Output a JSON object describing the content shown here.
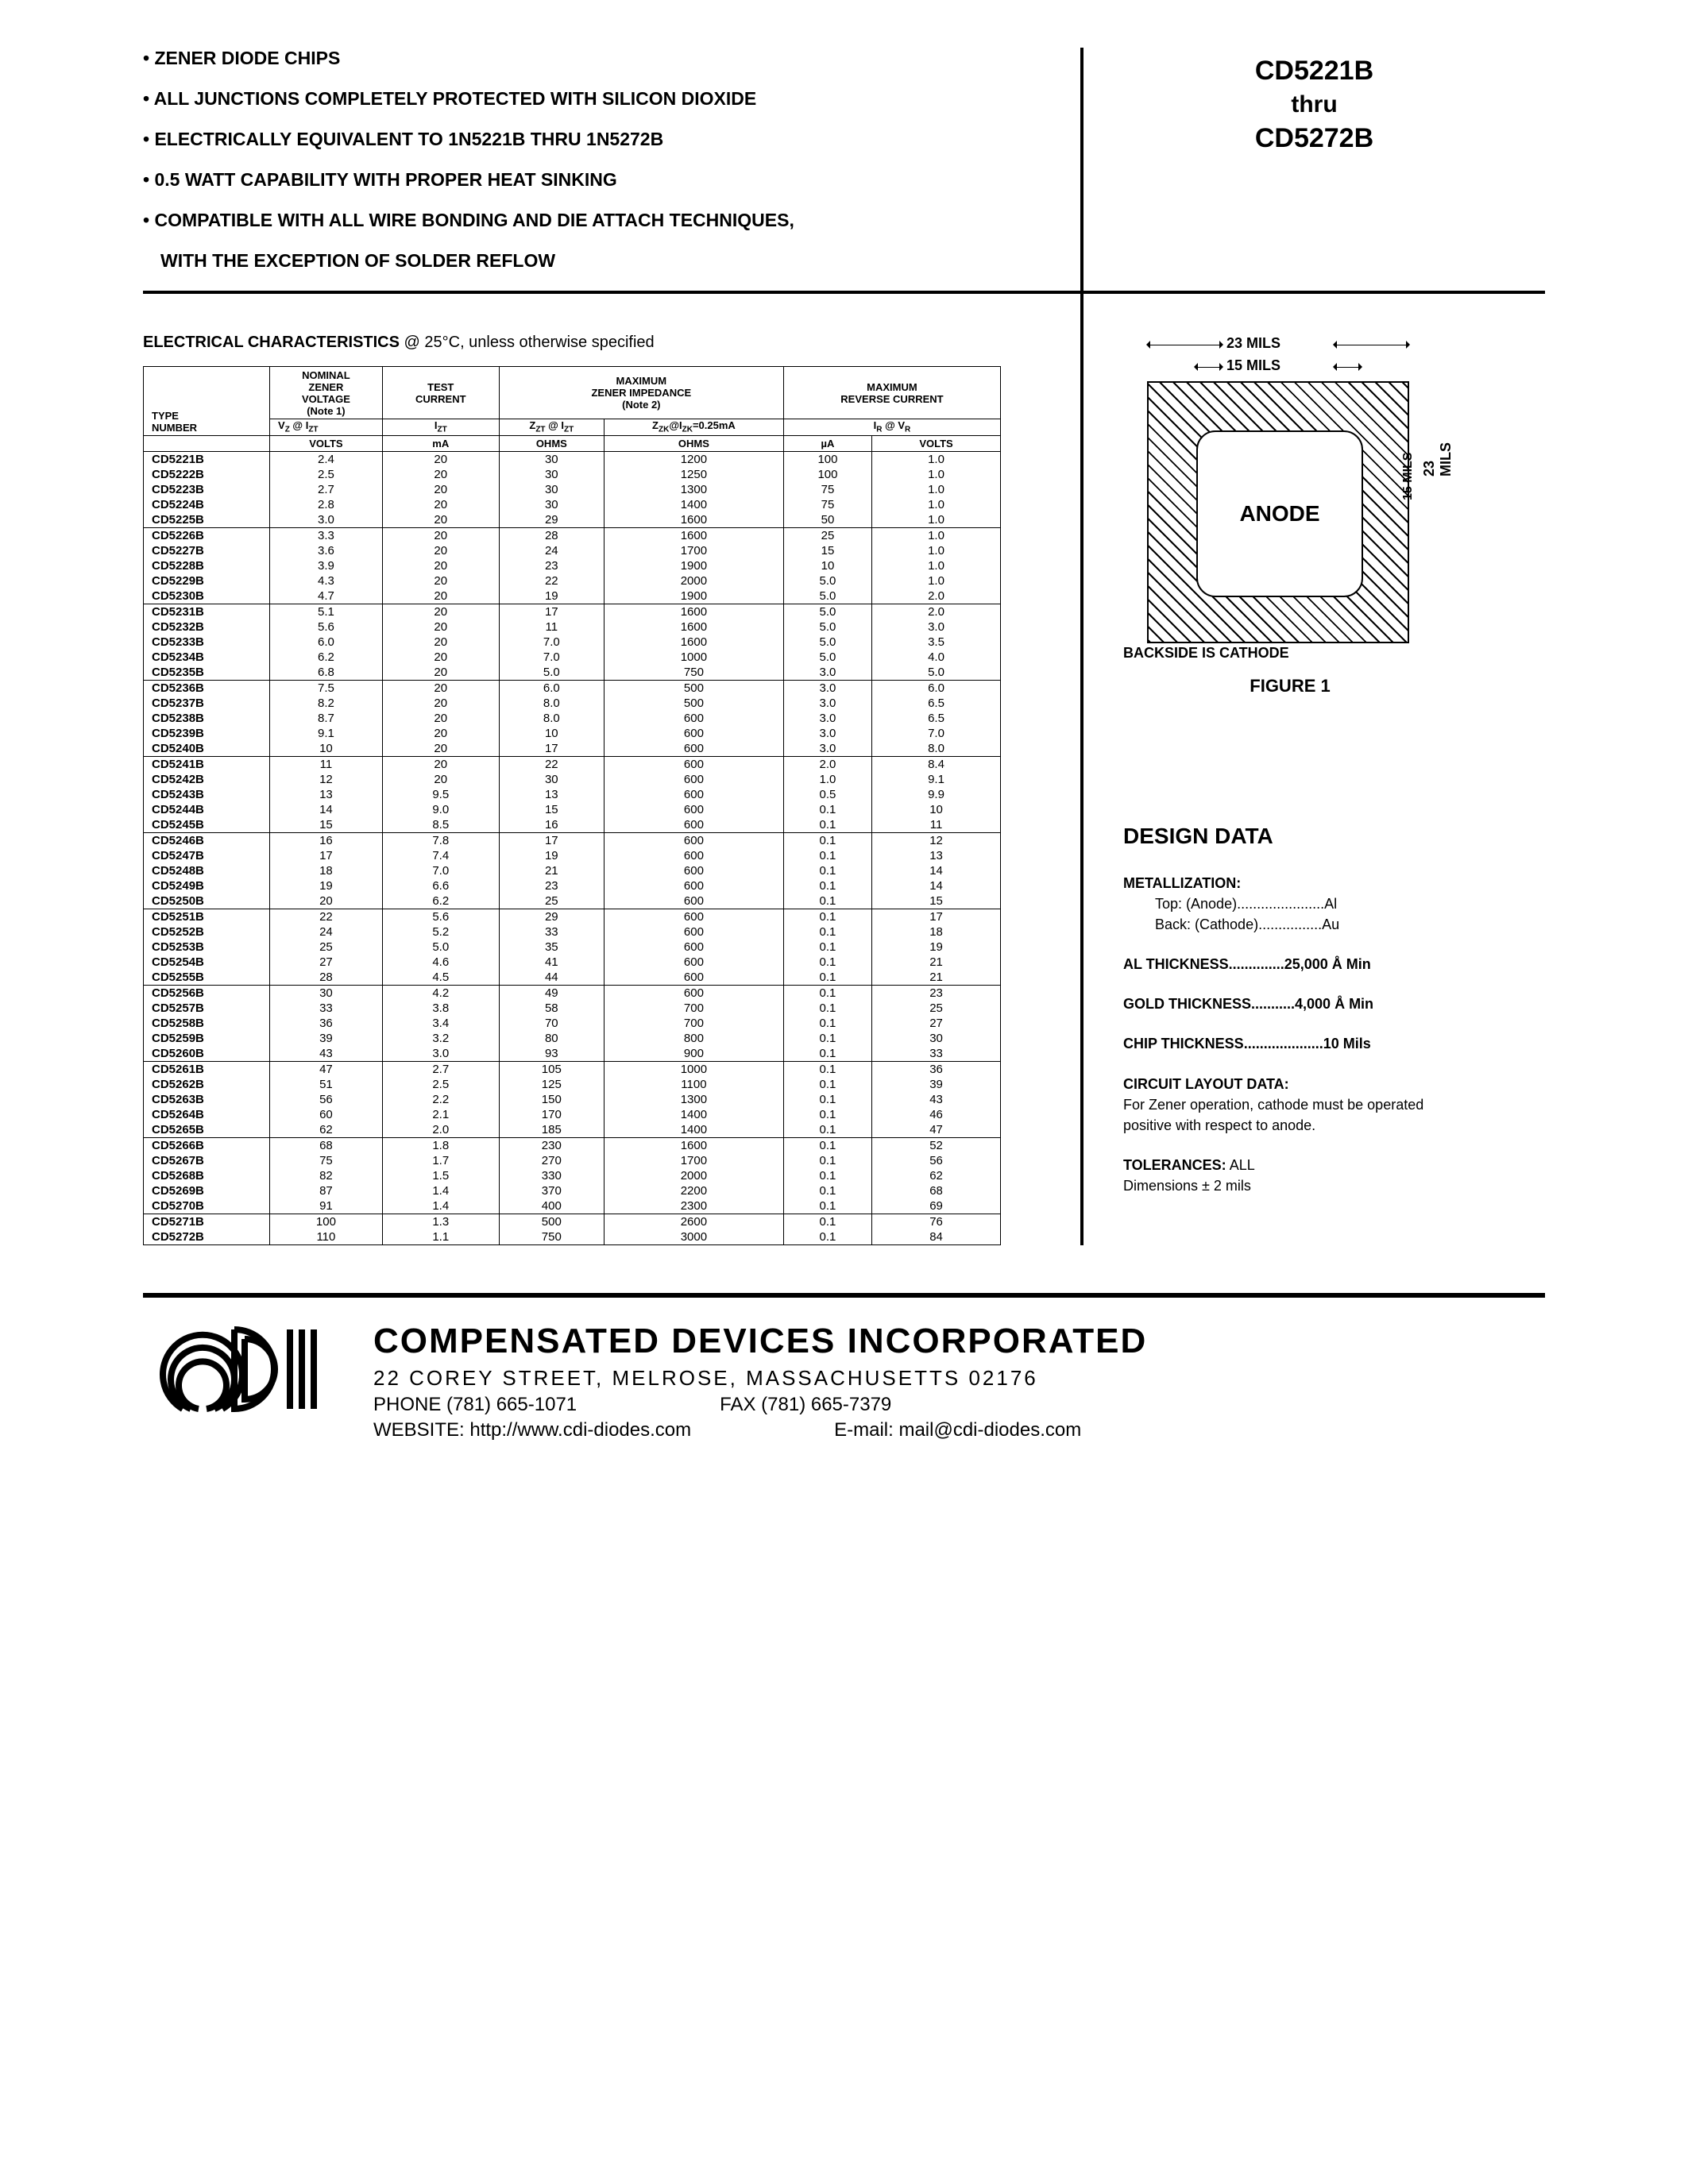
{
  "part_range": {
    "from": "CD5221B",
    "thru_label": "thru",
    "to": "CD5272B"
  },
  "features": [
    "ZENER DIODE CHIPS",
    "ALL JUNCTIONS COMPLETELY PROTECTED WITH SILICON DIOXIDE",
    "ELECTRICALLY EQUIVALENT TO 1N5221B THRU 1N5272B",
    "0.5 WATT CAPABILITY WITH PROPER HEAT SINKING",
    "COMPATIBLE WITH ALL WIRE BONDING AND DIE ATTACH TECHNIQUES,",
    "WITH THE EXCEPTION OF SOLDER REFLOW"
  ],
  "ec_title": "ELECTRICAL CHARACTERISTICS",
  "ec_cond": " @ 25°C, unless otherwise specified",
  "table": {
    "headers": {
      "type": "TYPE\nNUMBER",
      "nominal": "NOMINAL\nZENER\nVOLTAGE\n(Note 1)",
      "test": "TEST\nCURRENT",
      "max_imp": "MAXIMUM\nZENER IMPEDANCE\n(Note 2)",
      "max_rev": "MAXIMUM\nREVERSE CURRENT",
      "sub1": "V_Z @ I_ZT",
      "sub2": "I_ZT",
      "sub3": "Z_ZT @ I_ZT",
      "sub4": "Z_ZK@I_ZK=0.25mA",
      "sub5": "I_R @ V_R",
      "units": [
        "VOLTS",
        "mA",
        "OHMS",
        "OHMS",
        "µA",
        "VOLTS"
      ]
    },
    "groups": [
      [
        [
          "CD5221B",
          "2.4",
          "20",
          "30",
          "1200",
          "100",
          "1.0"
        ],
        [
          "CD5222B",
          "2.5",
          "20",
          "30",
          "1250",
          "100",
          "1.0"
        ],
        [
          "CD5223B",
          "2.7",
          "20",
          "30",
          "1300",
          "75",
          "1.0"
        ],
        [
          "CD5224B",
          "2.8",
          "20",
          "30",
          "1400",
          "75",
          "1.0"
        ],
        [
          "CD5225B",
          "3.0",
          "20",
          "29",
          "1600",
          "50",
          "1.0"
        ]
      ],
      [
        [
          "CD5226B",
          "3.3",
          "20",
          "28",
          "1600",
          "25",
          "1.0"
        ],
        [
          "CD5227B",
          "3.6",
          "20",
          "24",
          "1700",
          "15",
          "1.0"
        ],
        [
          "CD5228B",
          "3.9",
          "20",
          "23",
          "1900",
          "10",
          "1.0"
        ],
        [
          "CD5229B",
          "4.3",
          "20",
          "22",
          "2000",
          "5.0",
          "1.0"
        ],
        [
          "CD5230B",
          "4.7",
          "20",
          "19",
          "1900",
          "5.0",
          "2.0"
        ]
      ],
      [
        [
          "CD5231B",
          "5.1",
          "20",
          "17",
          "1600",
          "5.0",
          "2.0"
        ],
        [
          "CD5232B",
          "5.6",
          "20",
          "11",
          "1600",
          "5.0",
          "3.0"
        ],
        [
          "CD5233B",
          "6.0",
          "20",
          "7.0",
          "1600",
          "5.0",
          "3.5"
        ],
        [
          "CD5234B",
          "6.2",
          "20",
          "7.0",
          "1000",
          "5.0",
          "4.0"
        ],
        [
          "CD5235B",
          "6.8",
          "20",
          "5.0",
          "750",
          "3.0",
          "5.0"
        ]
      ],
      [
        [
          "CD5236B",
          "7.5",
          "20",
          "6.0",
          "500",
          "3.0",
          "6.0"
        ],
        [
          "CD5237B",
          "8.2",
          "20",
          "8.0",
          "500",
          "3.0",
          "6.5"
        ],
        [
          "CD5238B",
          "8.7",
          "20",
          "8.0",
          "600",
          "3.0",
          "6.5"
        ],
        [
          "CD5239B",
          "9.1",
          "20",
          "10",
          "600",
          "3.0",
          "7.0"
        ],
        [
          "CD5240B",
          "10",
          "20",
          "17",
          "600",
          "3.0",
          "8.0"
        ]
      ],
      [
        [
          "CD5241B",
          "11",
          "20",
          "22",
          "600",
          "2.0",
          "8.4"
        ],
        [
          "CD5242B",
          "12",
          "20",
          "30",
          "600",
          "1.0",
          "9.1"
        ],
        [
          "CD5243B",
          "13",
          "9.5",
          "13",
          "600",
          "0.5",
          "9.9"
        ],
        [
          "CD5244B",
          "14",
          "9.0",
          "15",
          "600",
          "0.1",
          "10"
        ],
        [
          "CD5245B",
          "15",
          "8.5",
          "16",
          "600",
          "0.1",
          "11"
        ]
      ],
      [
        [
          "CD5246B",
          "16",
          "7.8",
          "17",
          "600",
          "0.1",
          "12"
        ],
        [
          "CD5247B",
          "17",
          "7.4",
          "19",
          "600",
          "0.1",
          "13"
        ],
        [
          "CD5248B",
          "18",
          "7.0",
          "21",
          "600",
          "0.1",
          "14"
        ],
        [
          "CD5249B",
          "19",
          "6.6",
          "23",
          "600",
          "0.1",
          "14"
        ],
        [
          "CD5250B",
          "20",
          "6.2",
          "25",
          "600",
          "0.1",
          "15"
        ]
      ],
      [
        [
          "CD5251B",
          "22",
          "5.6",
          "29",
          "600",
          "0.1",
          "17"
        ],
        [
          "CD5252B",
          "24",
          "5.2",
          "33",
          "600",
          "0.1",
          "18"
        ],
        [
          "CD5253B",
          "25",
          "5.0",
          "35",
          "600",
          "0.1",
          "19"
        ],
        [
          "CD5254B",
          "27",
          "4.6",
          "41",
          "600",
          "0.1",
          "21"
        ],
        [
          "CD5255B",
          "28",
          "4.5",
          "44",
          "600",
          "0.1",
          "21"
        ]
      ],
      [
        [
          "CD5256B",
          "30",
          "4.2",
          "49",
          "600",
          "0.1",
          "23"
        ],
        [
          "CD5257B",
          "33",
          "3.8",
          "58",
          "700",
          "0.1",
          "25"
        ],
        [
          "CD5258B",
          "36",
          "3.4",
          "70",
          "700",
          "0.1",
          "27"
        ],
        [
          "CD5259B",
          "39",
          "3.2",
          "80",
          "800",
          "0.1",
          "30"
        ],
        [
          "CD5260B",
          "43",
          "3.0",
          "93",
          "900",
          "0.1",
          "33"
        ]
      ],
      [
        [
          "CD5261B",
          "47",
          "2.7",
          "105",
          "1000",
          "0.1",
          "36"
        ],
        [
          "CD5262B",
          "51",
          "2.5",
          "125",
          "1100",
          "0.1",
          "39"
        ],
        [
          "CD5263B",
          "56",
          "2.2",
          "150",
          "1300",
          "0.1",
          "43"
        ],
        [
          "CD5264B",
          "60",
          "2.1",
          "170",
          "1400",
          "0.1",
          "46"
        ],
        [
          "CD5265B",
          "62",
          "2.0",
          "185",
          "1400",
          "0.1",
          "47"
        ]
      ],
      [
        [
          "CD5266B",
          "68",
          "1.8",
          "230",
          "1600",
          "0.1",
          "52"
        ],
        [
          "CD5267B",
          "75",
          "1.7",
          "270",
          "1700",
          "0.1",
          "56"
        ],
        [
          "CD5268B",
          "82",
          "1.5",
          "330",
          "2000",
          "0.1",
          "62"
        ],
        [
          "CD5269B",
          "87",
          "1.4",
          "370",
          "2200",
          "0.1",
          "68"
        ],
        [
          "CD5270B",
          "91",
          "1.4",
          "400",
          "2300",
          "0.1",
          "69"
        ]
      ],
      [
        [
          "CD5271B",
          "100",
          "1.3",
          "500",
          "2600",
          "0.1",
          "76"
        ],
        [
          "CD5272B",
          "110",
          "1.1",
          "750",
          "3000",
          "0.1",
          "84"
        ]
      ]
    ]
  },
  "figure": {
    "outer_dim": "23 MILS",
    "inner_dim": "15 MILS",
    "anode_label": "ANODE",
    "caption": "BACKSIDE IS CATHODE",
    "title": "FIGURE 1"
  },
  "design": {
    "title": "DESIGN DATA",
    "metallization_label": "METALLIZATION:",
    "met_top": "Top: (Anode)......................Al",
    "met_back": "Back: (Cathode)................Au",
    "al_thick": "AL THICKNESS..............25,000 Å Min",
    "gold_thick": "GOLD THICKNESS...........4,000 Å Min",
    "chip_thick": "CHIP THICKNESS....................10 Mils",
    "circuit_label": "CIRCUIT LAYOUT DATA:",
    "circuit_text": "For Zener operation, cathode must be operated positive with respect to anode.",
    "tol_label": "TOLERANCES:",
    "tol_text": " ALL\nDimensions ± 2 mils"
  },
  "footer": {
    "company": "COMPENSATED DEVICES INCORPORATED",
    "address": "22 COREY STREET, MELROSE, MASSACHUSETTS 02176",
    "phone": "PHONE (781) 665-1071",
    "fax": "FAX (781) 665-7379",
    "website": "WEBSITE:  http://www.cdi-diodes.com",
    "email": "E-mail: mail@cdi-diodes.com"
  }
}
